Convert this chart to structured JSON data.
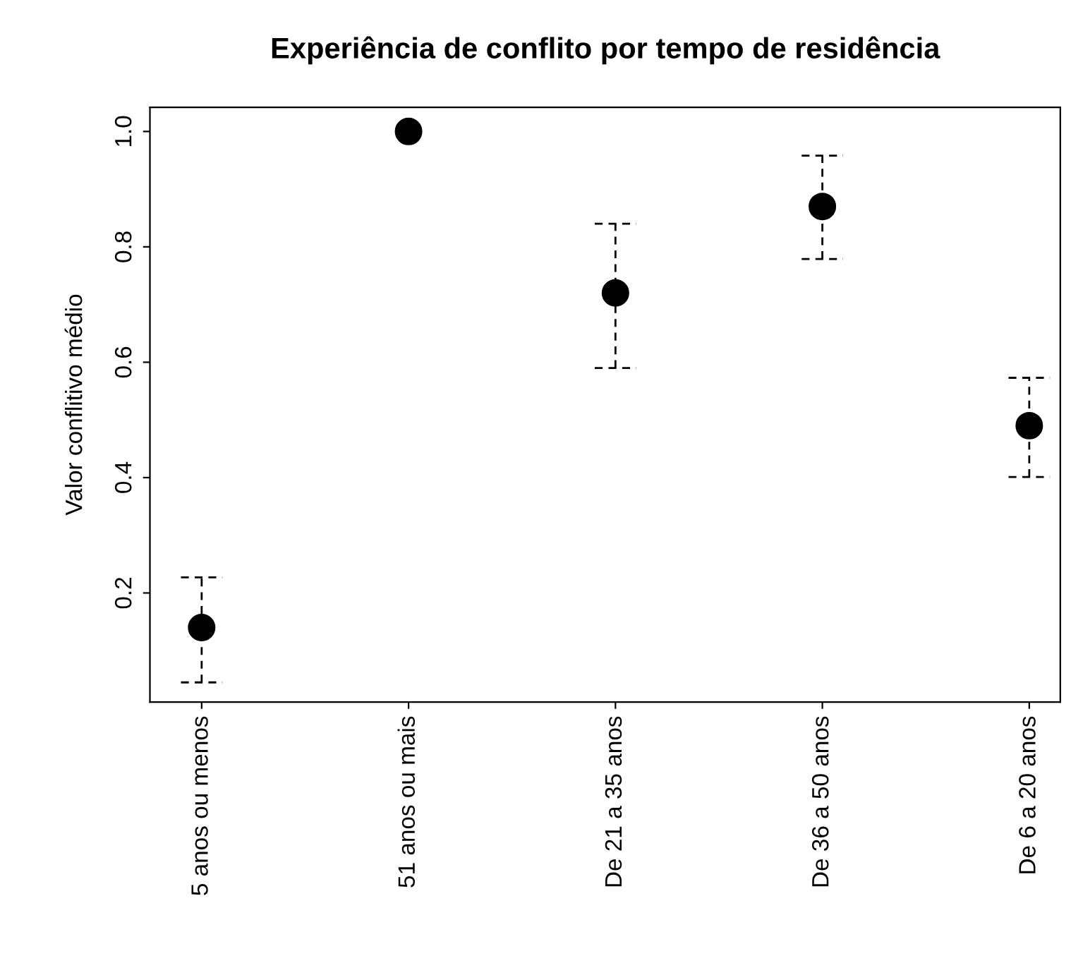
{
  "chart_data": {
    "type": "scatter",
    "title": "Experiência de conflito por tempo de residência",
    "ylabel": "Valor conflitivo médio",
    "categories": [
      "5 anos ou menos",
      "51 anos ou mais",
      "De 21 a 35 anos",
      "De 36 a 50 anos",
      "De 6 a 20 anos"
    ],
    "values": [
      0.14,
      1.0,
      0.72,
      0.87,
      0.49
    ],
    "errors": [
      [
        0.045,
        0.227
      ],
      null,
      [
        0.59,
        0.84
      ],
      [
        0.779,
        0.958
      ],
      [
        0.401,
        0.573
      ]
    ],
    "color": "#000000",
    "marker": "circle",
    "line_style": "dashed",
    "ylim": [
      0.011,
      1.042
    ],
    "yticks": [
      0.2,
      0.4,
      0.6,
      0.8,
      {
        "value": 1,
        "label": "1.0"
      }
    ],
    "grid": false,
    "legend": false
  }
}
